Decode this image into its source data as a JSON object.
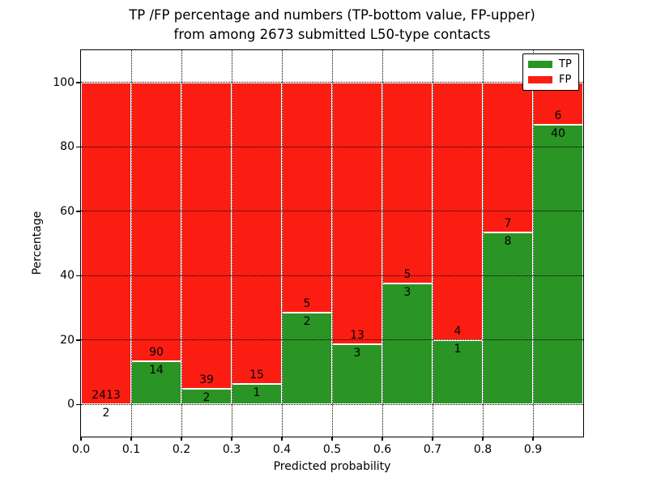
{
  "title": {
    "line1": "TP /FP percentage and numbers (TP-bottom value, FP-upper)",
    "line2": "from among 2673 submitted L50-type contacts"
  },
  "chart_data": {
    "type": "bar",
    "stacked": true,
    "normalized": "percent",
    "title": "TP /FP percentage and numbers (TP-bottom value, FP-upper) from among 2673 submitted L50-type contacts",
    "xlabel": "Predicted probability",
    "ylabel": "Percentage",
    "bins": [
      "0.0-0.1",
      "0.1-0.2",
      "0.2-0.3",
      "0.3-0.4",
      "0.4-0.5",
      "0.5-0.6",
      "0.6-0.7",
      "0.7-0.8",
      "0.8-0.9",
      "0.9-1.0"
    ],
    "series": [
      {
        "name": "TP",
        "color": "#2a9424",
        "values": [
          2,
          14,
          2,
          1,
          2,
          3,
          3,
          1,
          8,
          40
        ]
      },
      {
        "name": "FP",
        "color": "#fc1d12",
        "values": [
          2413,
          90,
          39,
          15,
          5,
          13,
          5,
          4,
          7,
          6
        ]
      }
    ],
    "tp_percent_by_bin": [
      0.08,
      13.46,
      4.88,
      6.25,
      28.57,
      18.75,
      37.5,
      20.0,
      53.33,
      86.96
    ],
    "total_contacts": 2673,
    "xticks": [
      "0.0",
      "0.1",
      "0.2",
      "0.3",
      "0.4",
      "0.5",
      "0.6",
      "0.7",
      "0.8",
      "0.9"
    ],
    "yticks": [
      0,
      20,
      40,
      60,
      80,
      100
    ],
    "xlim": [
      0.0,
      1.0
    ],
    "ylim": [
      -10,
      110
    ],
    "grid": true,
    "legend_position": "upper right"
  },
  "legend": {
    "entries": [
      {
        "label": "TP",
        "color": "#2a9424"
      },
      {
        "label": "FP",
        "color": "#fc1d12"
      }
    ]
  },
  "colors": {
    "tp": "#2a9424",
    "fp": "#fc1d12",
    "bar_edge": "#ffffff",
    "grid": "#000000",
    "background": "#ffffff",
    "text": "#000000"
  }
}
